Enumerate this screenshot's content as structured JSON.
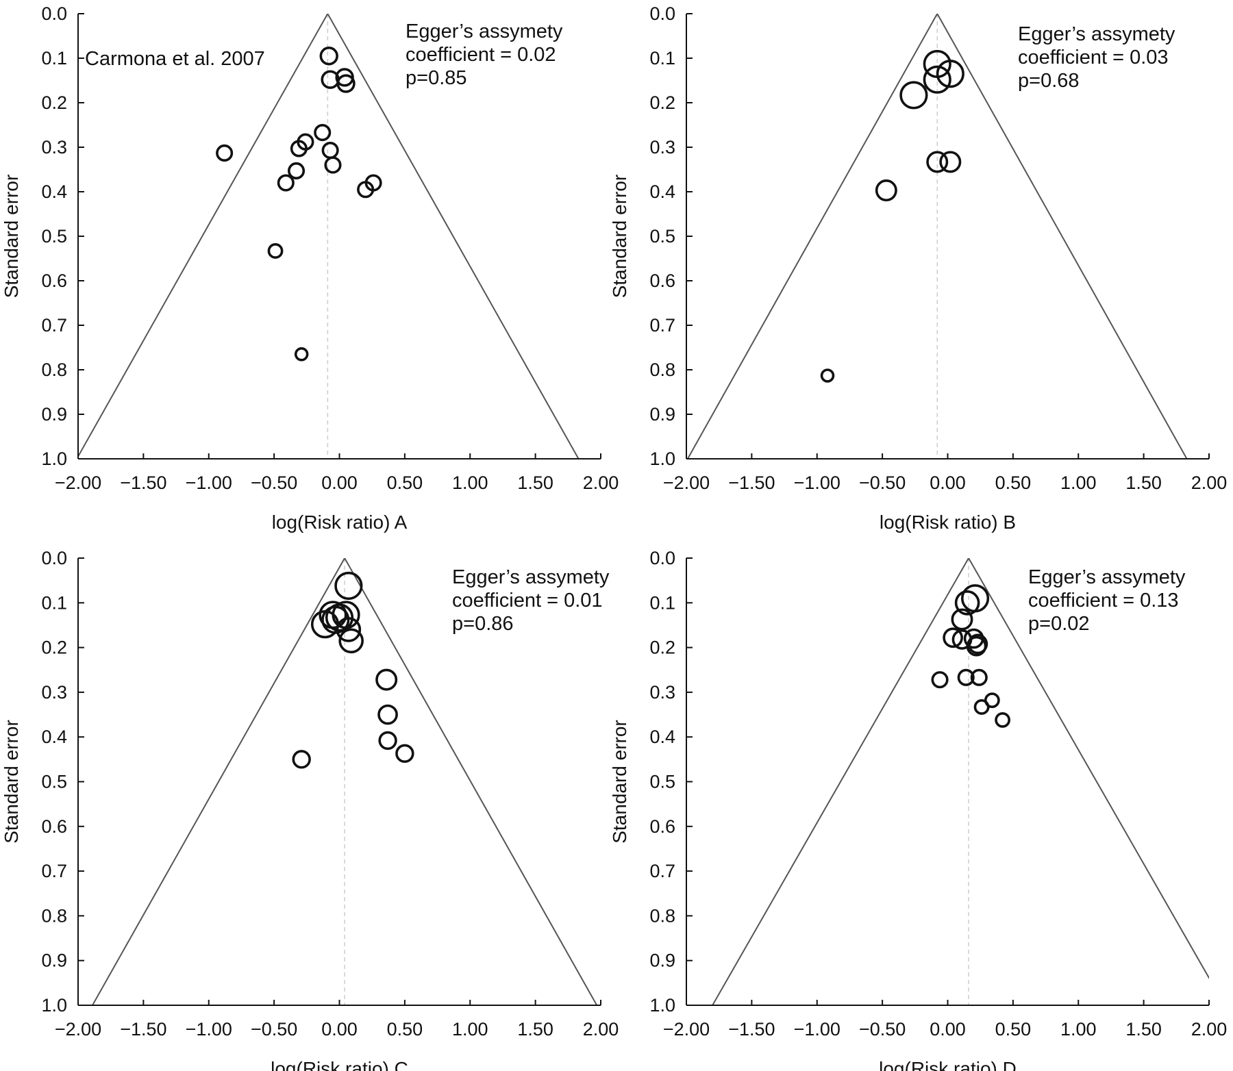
{
  "colors": {
    "ink": "#111111",
    "funnel": "#555555",
    "center": "#cccccc",
    "background": "#ffffff"
  },
  "chart_data": [
    {
      "type": "scatter",
      "panel": "A",
      "xlabel": "log(Risk ratio) A",
      "ylabel": "Standard error",
      "xlim": [
        -2.0,
        2.0
      ],
      "ylim": [
        0.0,
        1.0
      ],
      "y_inverted": true,
      "xticks": [
        "-2.00",
        "-1.50",
        "-1.00",
        "-0.50",
        "0.00",
        "0.50",
        "1.00",
        "1.50",
        "2.00"
      ],
      "yticks": [
        "0.0",
        "0.1",
        "0.2",
        "0.3",
        "0.4",
        "0.5",
        "0.6",
        "0.7",
        "0.8",
        "0.9",
        "1.0"
      ],
      "pooled_estimate": -0.09,
      "funnel_slope": 1.92,
      "annotation": [
        "Egger’s assymety",
        "coefficient = 0.02",
        "p=0.85"
      ],
      "point_label": {
        "text": "Carmona et al. 2007"
      },
      "points": [
        {
          "x": -0.08,
          "y": 0.095,
          "w": 3
        },
        {
          "x": -0.07,
          "y": 0.148,
          "w": 3
        },
        {
          "x": 0.04,
          "y": 0.143,
          "w": 3
        },
        {
          "x": 0.05,
          "y": 0.157,
          "w": 3
        },
        {
          "x": -0.13,
          "y": 0.267,
          "w": 2.5
        },
        {
          "x": -0.26,
          "y": 0.288,
          "w": 2.5
        },
        {
          "x": -0.31,
          "y": 0.303,
          "w": 2.5
        },
        {
          "x": -0.07,
          "y": 0.307,
          "w": 2.5
        },
        {
          "x": -0.05,
          "y": 0.34,
          "w": 2.5
        },
        {
          "x": -0.33,
          "y": 0.353,
          "w": 2.5
        },
        {
          "x": -0.41,
          "y": 0.38,
          "w": 2.5
        },
        {
          "x": 0.26,
          "y": 0.38,
          "w": 2.5
        },
        {
          "x": 0.2,
          "y": 0.395,
          "w": 2.5
        },
        {
          "x": -0.88,
          "y": 0.313,
          "w": 2.5
        },
        {
          "x": -0.49,
          "y": 0.533,
          "w": 2
        },
        {
          "x": -0.29,
          "y": 0.765,
          "w": 1.5
        }
      ]
    },
    {
      "type": "scatter",
      "panel": "B",
      "xlabel": "log(Risk ratio) B",
      "ylabel": "Standard error",
      "xlim": [
        -2.0,
        2.0
      ],
      "ylim": [
        0.0,
        1.0
      ],
      "y_inverted": true,
      "xticks": [
        "-2.00",
        "-1.50",
        "-1.00",
        "-0.50",
        "0.00",
        "0.50",
        "1.00",
        "1.50",
        "2.00"
      ],
      "yticks": [
        "0.0",
        "0.1",
        "0.2",
        "0.3",
        "0.4",
        "0.5",
        "0.6",
        "0.7",
        "0.8",
        "0.9",
        "1.0"
      ],
      "pooled_estimate": -0.08,
      "funnel_slope": 1.91,
      "annotation": [
        "Egger’s assymety",
        "coefficient = 0.03",
        "p=0.68"
      ],
      "points": [
        {
          "x": -0.08,
          "y": 0.113,
          "w": 6
        },
        {
          "x": 0.02,
          "y": 0.135,
          "w": 6
        },
        {
          "x": -0.08,
          "y": 0.148,
          "w": 6
        },
        {
          "x": -0.26,
          "y": 0.183,
          "w": 6
        },
        {
          "x": -0.08,
          "y": 0.333,
          "w": 4
        },
        {
          "x": 0.02,
          "y": 0.333,
          "w": 4
        },
        {
          "x": -0.47,
          "y": 0.397,
          "w": 4
        },
        {
          "x": -0.92,
          "y": 0.813,
          "w": 1.5
        }
      ]
    },
    {
      "type": "scatter",
      "panel": "C",
      "xlabel": "log(Risk ratio) C",
      "ylabel": "Standard error",
      "xlim": [
        -2.0,
        2.0
      ],
      "ylim": [
        0.0,
        1.0
      ],
      "y_inverted": true,
      "xticks": [
        "-2.00",
        "-1.50",
        "-1.00",
        "-0.50",
        "0.00",
        "0.50",
        "1.00",
        "1.50",
        "2.00"
      ],
      "yticks": [
        "0.0",
        "0.1",
        "0.2",
        "0.3",
        "0.4",
        "0.5",
        "0.6",
        "0.7",
        "0.8",
        "0.9",
        "1.0"
      ],
      "pooled_estimate": 0.04,
      "funnel_slope": 1.93,
      "annotation": [
        "Egger’s assymety",
        "coefficient = 0.01",
        "p=0.86"
      ],
      "points": [
        {
          "x": 0.07,
          "y": 0.062,
          "w": 6
        },
        {
          "x": -0.05,
          "y": 0.127,
          "w": 6
        },
        {
          "x": 0.05,
          "y": 0.127,
          "w": 6
        },
        {
          "x": 0.0,
          "y": 0.133,
          "w": 6
        },
        {
          "x": -0.03,
          "y": 0.138,
          "w": 6
        },
        {
          "x": -0.11,
          "y": 0.148,
          "w": 6
        },
        {
          "x": 0.07,
          "y": 0.16,
          "w": 5
        },
        {
          "x": 0.09,
          "y": 0.185,
          "w": 5
        },
        {
          "x": 0.36,
          "y": 0.272,
          "w": 4
        },
        {
          "x": 0.37,
          "y": 0.35,
          "w": 3.5
        },
        {
          "x": 0.37,
          "y": 0.408,
          "w": 3
        },
        {
          "x": 0.5,
          "y": 0.437,
          "w": 3
        },
        {
          "x": -0.29,
          "y": 0.45,
          "w": 3
        }
      ]
    },
    {
      "type": "scatter",
      "panel": "D",
      "xlabel": "log(Risk ratio) D",
      "ylabel": "Standard error",
      "xlim": [
        -2.0,
        2.0
      ],
      "ylim": [
        0.0,
        1.0
      ],
      "y_inverted": true,
      "xticks": [
        "-2.00",
        "-1.50",
        "-1.00",
        "-0.50",
        "0.00",
        "0.50",
        "1.00",
        "1.50",
        "2.00"
      ],
      "yticks": [
        "0.0",
        "0.1",
        "0.2",
        "0.3",
        "0.4",
        "0.5",
        "0.6",
        "0.7",
        "0.8",
        "0.9",
        "1.0"
      ],
      "pooled_estimate": 0.16,
      "funnel_slope": 1.96,
      "annotation": [
        "Egger’s assymety",
        "coefficient = 0.13",
        "p=0.02"
      ],
      "points": [
        {
          "x": 0.21,
          "y": 0.09,
          "w": 6
        },
        {
          "x": 0.15,
          "y": 0.1,
          "w": 5
        },
        {
          "x": 0.11,
          "y": 0.137,
          "w": 4
        },
        {
          "x": 0.04,
          "y": 0.178,
          "w": 3.5
        },
        {
          "x": 0.11,
          "y": 0.182,
          "w": 3.5
        },
        {
          "x": 0.2,
          "y": 0.18,
          "w": 3.5
        },
        {
          "x": 0.23,
          "y": 0.192,
          "w": 3.5
        },
        {
          "x": 0.22,
          "y": 0.197,
          "w": 3.5
        },
        {
          "x": -0.06,
          "y": 0.272,
          "w": 2.5
        },
        {
          "x": 0.14,
          "y": 0.267,
          "w": 2.5
        },
        {
          "x": 0.24,
          "y": 0.267,
          "w": 2.5
        },
        {
          "x": 0.34,
          "y": 0.318,
          "w": 2
        },
        {
          "x": 0.26,
          "y": 0.333,
          "w": 2
        },
        {
          "x": 0.42,
          "y": 0.362,
          "w": 2
        }
      ]
    }
  ]
}
